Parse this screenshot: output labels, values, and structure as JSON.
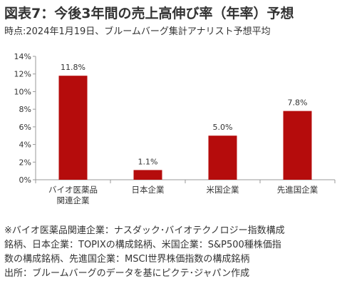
{
  "header": {
    "title": "図表7：今後3年間の売上高伸び率（年率）予想",
    "subtitle": "時点:2024年1月19日、ブルームバーグ集計アナリスト予想平均"
  },
  "chart_data": {
    "type": "bar",
    "categories": [
      [
        "バイオ医薬品",
        "関連企業"
      ],
      [
        "日本企業"
      ],
      [
        "米国企業"
      ],
      [
        "先進国企業"
      ]
    ],
    "values": [
      11.8,
      1.1,
      5.0,
      7.8
    ],
    "data_labels": [
      "11.8%",
      "1.1%",
      "5.0%",
      "7.8%"
    ],
    "ylim": [
      0,
      14
    ],
    "yticks": [
      "0%",
      "2%",
      "4%",
      "6%",
      "8%",
      "10%",
      "12%",
      "14%"
    ],
    "bar_color": "#b50c0c",
    "grid": false
  },
  "notes": {
    "lines": [
      "※バイオ医薬品関連企業：ナスダック･バイオテクノロジー指数構成",
      "銘柄、日本企業：TOPIXの構成銘柄、米国企業：S&P500種株価指",
      "数の構成銘柄、先進国企業：MSCI世界株価指数の構成銘柄",
      "出所：ブルームバーグのデータを基にピクテ･ジャパン作成"
    ]
  }
}
